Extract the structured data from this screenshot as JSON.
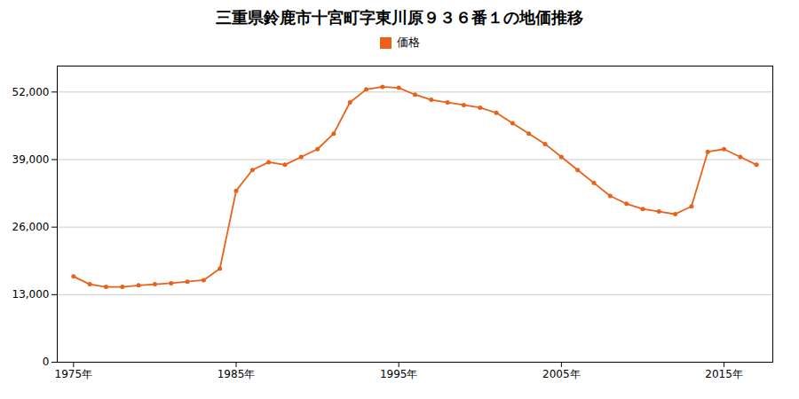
{
  "chart_data": {
    "type": "line",
    "title": "三重県鈴鹿市十宮町字東川原９３６番１の地価推移",
    "x": [
      1975,
      1976,
      1977,
      1978,
      1979,
      1980,
      1981,
      1982,
      1983,
      1984,
      1985,
      1986,
      1987,
      1988,
      1989,
      1990,
      1991,
      1992,
      1993,
      1994,
      1995,
      1996,
      1997,
      1998,
      1999,
      2000,
      2001,
      2002,
      2003,
      2004,
      2005,
      2006,
      2007,
      2008,
      2009,
      2010,
      2011,
      2012,
      2013,
      2014,
      2015,
      2016,
      2017
    ],
    "series": [
      {
        "name": "価格",
        "color": "#E8621A",
        "marker": "circle",
        "values": [
          16500,
          15000,
          14500,
          14500,
          14800,
          15000,
          15200,
          15500,
          15800,
          18000,
          33000,
          37000,
          38500,
          38000,
          39500,
          41000,
          44000,
          50000,
          52500,
          53000,
          52800,
          51500,
          50500,
          50000,
          49500,
          49000,
          48000,
          46000,
          44000,
          42000,
          39500,
          37000,
          34500,
          32000,
          30500,
          29500,
          29000,
          28500,
          30000,
          40500,
          41000,
          39500,
          38000
        ]
      }
    ],
    "xlim": [
      1974,
      2018
    ],
    "xticks": [
      {
        "value": 1975,
        "label": "1975年"
      },
      {
        "value": 1985,
        "label": "1985年"
      },
      {
        "value": 1995,
        "label": "1995年"
      },
      {
        "value": 2005,
        "label": "2005年"
      },
      {
        "value": 2015,
        "label": "2015年"
      }
    ],
    "ylim": [
      0,
      57000
    ],
    "yticks": [
      0,
      {
        "value": 13000,
        "label": "13,000"
      },
      {
        "value": 26000,
        "label": "26,000"
      },
      {
        "value": 39000,
        "label": "39,000"
      },
      {
        "value": 52000,
        "label": "52,000"
      }
    ],
    "grid": "y",
    "legend": "top"
  }
}
